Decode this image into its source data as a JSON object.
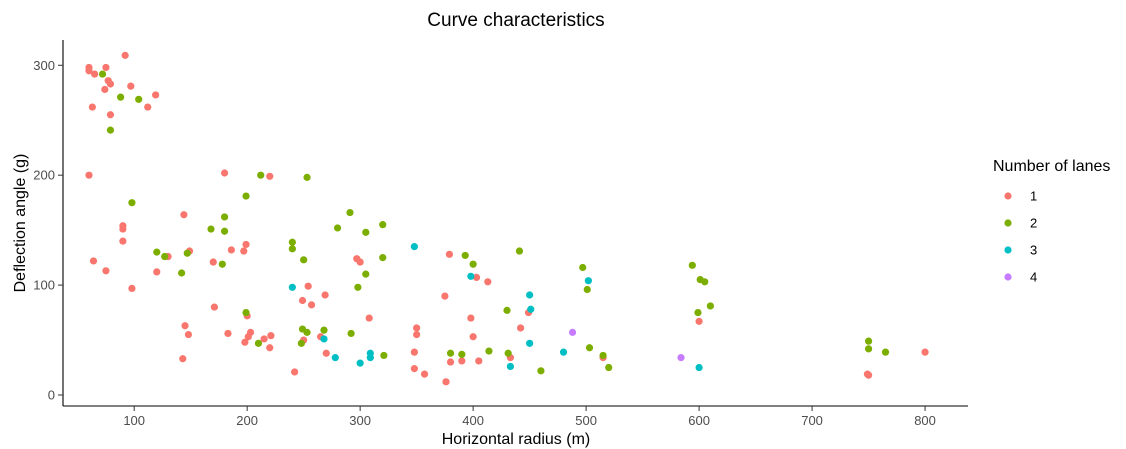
{
  "chart_data": {
    "type": "scatter",
    "title": "Curve characteristics",
    "xlabel": "Horizontal radius (m)",
    "ylabel": "Deflection angle (g)",
    "xlim": [
      37,
      838
    ],
    "ylim": [
      -10,
      323
    ],
    "x_ticks": [
      100,
      200,
      300,
      400,
      500,
      600,
      700,
      800
    ],
    "y_ticks": [
      0,
      100,
      200,
      300
    ],
    "grid": false,
    "legend": {
      "title": "Number of lanes",
      "position": "right",
      "entries": [
        "1",
        "2",
        "3",
        "4"
      ]
    },
    "series": [
      {
        "name": "1",
        "color": "#F8766D",
        "points": [
          [
            60,
            298
          ],
          [
            60,
            295
          ],
          [
            60,
            200
          ],
          [
            63,
            262
          ],
          [
            64,
            122
          ],
          [
            65,
            292
          ],
          [
            74,
            278
          ],
          [
            75,
            298
          ],
          [
            75,
            113
          ],
          [
            77,
            286
          ],
          [
            79,
            283
          ],
          [
            79,
            255
          ],
          [
            92,
            309
          ],
          [
            97,
            281
          ],
          [
            98,
            97
          ],
          [
            90,
            154
          ],
          [
            90,
            151
          ],
          [
            90,
            140
          ],
          [
            112,
            262
          ],
          [
            119,
            273
          ],
          [
            120,
            112
          ],
          [
            130,
            126
          ],
          [
            143,
            33
          ],
          [
            144,
            164
          ],
          [
            145,
            63
          ],
          [
            148,
            55
          ],
          [
            149,
            131
          ],
          [
            170,
            121
          ],
          [
            171,
            80
          ],
          [
            180,
            202
          ],
          [
            183,
            56
          ],
          [
            186,
            132
          ],
          [
            197,
            131
          ],
          [
            198,
            48
          ],
          [
            199,
            137
          ],
          [
            200,
            72
          ],
          [
            201,
            53
          ],
          [
            203,
            57
          ],
          [
            215,
            51
          ],
          [
            220,
            43
          ],
          [
            220,
            199
          ],
          [
            221,
            54
          ],
          [
            242,
            21
          ],
          [
            249,
            86
          ],
          [
            250,
            50
          ],
          [
            254,
            99
          ],
          [
            257,
            82
          ],
          [
            265,
            53
          ],
          [
            269,
            91
          ],
          [
            270,
            38
          ],
          [
            297,
            124
          ],
          [
            300,
            121
          ],
          [
            308,
            70
          ],
          [
            348,
            39
          ],
          [
            348,
            24
          ],
          [
            350,
            55
          ],
          [
            350,
            61
          ],
          [
            357,
            19
          ],
          [
            375,
            90
          ],
          [
            376,
            12
          ],
          [
            379,
            128
          ],
          [
            380,
            30
          ],
          [
            390,
            31
          ],
          [
            398,
            70
          ],
          [
            400,
            53
          ],
          [
            403,
            107
          ],
          [
            405,
            31
          ],
          [
            413,
            103
          ],
          [
            433,
            34
          ],
          [
            442,
            61
          ],
          [
            449,
            75
          ],
          [
            515,
            34
          ],
          [
            600,
            67
          ],
          [
            749,
            19
          ],
          [
            750,
            18
          ],
          [
            800,
            39
          ]
        ]
      },
      {
        "name": "2",
        "color": "#7CAE00",
        "points": [
          [
            72,
            292
          ],
          [
            79,
            241
          ],
          [
            88,
            271
          ],
          [
            98,
            175
          ],
          [
            104,
            269
          ],
          [
            120,
            130
          ],
          [
            127,
            126
          ],
          [
            142,
            111
          ],
          [
            147,
            129
          ],
          [
            168,
            151
          ],
          [
            178,
            119
          ],
          [
            180,
            149
          ],
          [
            180,
            162
          ],
          [
            199,
            75
          ],
          [
            199,
            181
          ],
          [
            210,
            47
          ],
          [
            212,
            200
          ],
          [
            240,
            139
          ],
          [
            240,
            133
          ],
          [
            248,
            47
          ],
          [
            249,
            60
          ],
          [
            250,
            123
          ],
          [
            253,
            198
          ],
          [
            253,
            57
          ],
          [
            268,
            59
          ],
          [
            280,
            152
          ],
          [
            291,
            166
          ],
          [
            292,
            56
          ],
          [
            298,
            98
          ],
          [
            305,
            110
          ],
          [
            305,
            148
          ],
          [
            320,
            155
          ],
          [
            320,
            125
          ],
          [
            321,
            36
          ],
          [
            380,
            38
          ],
          [
            390,
            37
          ],
          [
            393,
            127
          ],
          [
            400,
            119
          ],
          [
            414,
            40
          ],
          [
            430,
            77
          ],
          [
            431,
            38
          ],
          [
            441,
            131
          ],
          [
            460,
            22
          ],
          [
            497,
            116
          ],
          [
            501,
            96
          ],
          [
            503,
            43
          ],
          [
            515,
            36
          ],
          [
            520,
            25
          ],
          [
            594,
            118
          ],
          [
            599,
            75
          ],
          [
            601,
            105
          ],
          [
            605,
            103
          ],
          [
            610,
            81
          ],
          [
            750,
            49
          ],
          [
            750,
            42
          ],
          [
            765,
            39
          ]
        ]
      },
      {
        "name": "3",
        "color": "#00BFC4",
        "points": [
          [
            240,
            98
          ],
          [
            268,
            51
          ],
          [
            278,
            34
          ],
          [
            300,
            29
          ],
          [
            309,
            38
          ],
          [
            309,
            34
          ],
          [
            348,
            135
          ],
          [
            398,
            108
          ],
          [
            433,
            26
          ],
          [
            450,
            91
          ],
          [
            450,
            47
          ],
          [
            451,
            78
          ],
          [
            480,
            39
          ],
          [
            502,
            104
          ],
          [
            600,
            25
          ]
        ]
      },
      {
        "name": "4",
        "color": "#C77CFF",
        "points": [
          [
            488,
            57
          ],
          [
            584,
            34
          ]
        ]
      }
    ]
  }
}
